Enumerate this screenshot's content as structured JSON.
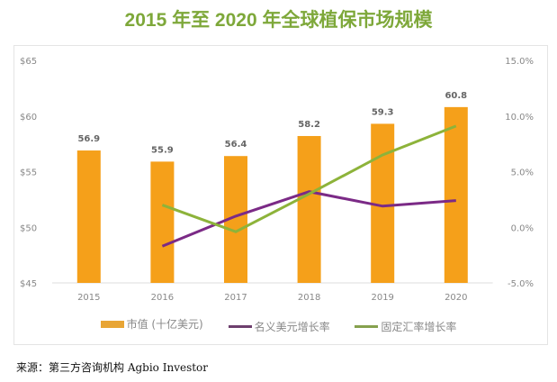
{
  "chart_data": {
    "type": "bar+line",
    "title": "2015 年至 2020 年全球植保市场规模",
    "categories": [
      "2015",
      "2016",
      "2017",
      "2018",
      "2019",
      "2020"
    ],
    "y_left": {
      "ticks": [
        "$45",
        "$50",
        "$55",
        "$60",
        "$65"
      ],
      "range": [
        45,
        65
      ]
    },
    "y_right": {
      "ticks": [
        "-5.0%",
        "0.0%",
        "5.0%",
        "10.0%",
        "15.0%"
      ],
      "range": [
        -5,
        15
      ]
    },
    "series": [
      {
        "name": "市值 (十亿美元)",
        "kind": "bar",
        "axis": "left",
        "color": "#f5a01a",
        "values": [
          56.9,
          55.9,
          56.4,
          58.2,
          59.3,
          60.8
        ],
        "labels": [
          "56.9",
          "55.9",
          "56.4",
          "58.2",
          "59.3",
          "60.8"
        ]
      },
      {
        "name": "名义美元增长率",
        "kind": "line",
        "axis": "right",
        "color": "#7b2a86",
        "values": [
          null,
          -1.7,
          1.0,
          3.2,
          1.9,
          2.4
        ]
      },
      {
        "name": "固定汇率增长率",
        "kind": "line",
        "axis": "right",
        "color": "#8db33a",
        "values": [
          null,
          2.0,
          -0.4,
          3.0,
          6.5,
          9.1
        ]
      }
    ],
    "grid": false,
    "legend": "bottom"
  },
  "source": "来源：第三方咨询机构 Agbio Investor"
}
